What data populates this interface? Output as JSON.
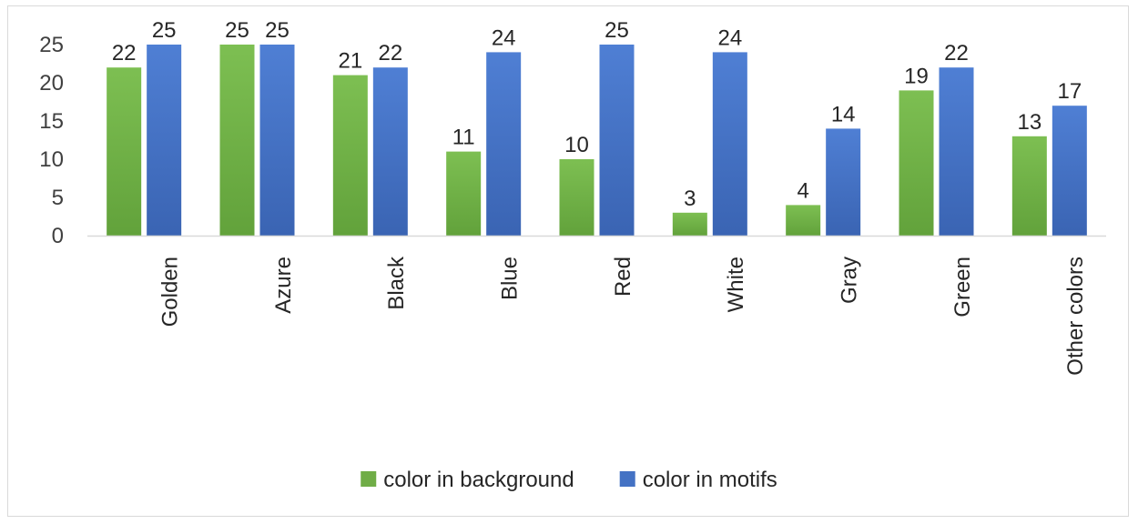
{
  "chart_data": {
    "type": "bar",
    "title": "",
    "xlabel": "",
    "ylabel": "",
    "ylim": [
      0,
      25
    ],
    "yticks": [
      0,
      5,
      10,
      15,
      20,
      25
    ],
    "grid": false,
    "legend_position": "bottom",
    "categories": [
      "Golden",
      "Azure",
      "Black",
      "Blue",
      "Red",
      "White",
      "Gray",
      "Green",
      "Other colors"
    ],
    "series": [
      {
        "name": "color in background",
        "color": "#70ad47",
        "values": [
          22,
          25,
          21,
          11,
          10,
          3,
          4,
          19,
          13
        ]
      },
      {
        "name": "color in motifs",
        "color": "#4472c4",
        "values": [
          25,
          25,
          22,
          24,
          25,
          24,
          14,
          22,
          17
        ]
      }
    ]
  }
}
